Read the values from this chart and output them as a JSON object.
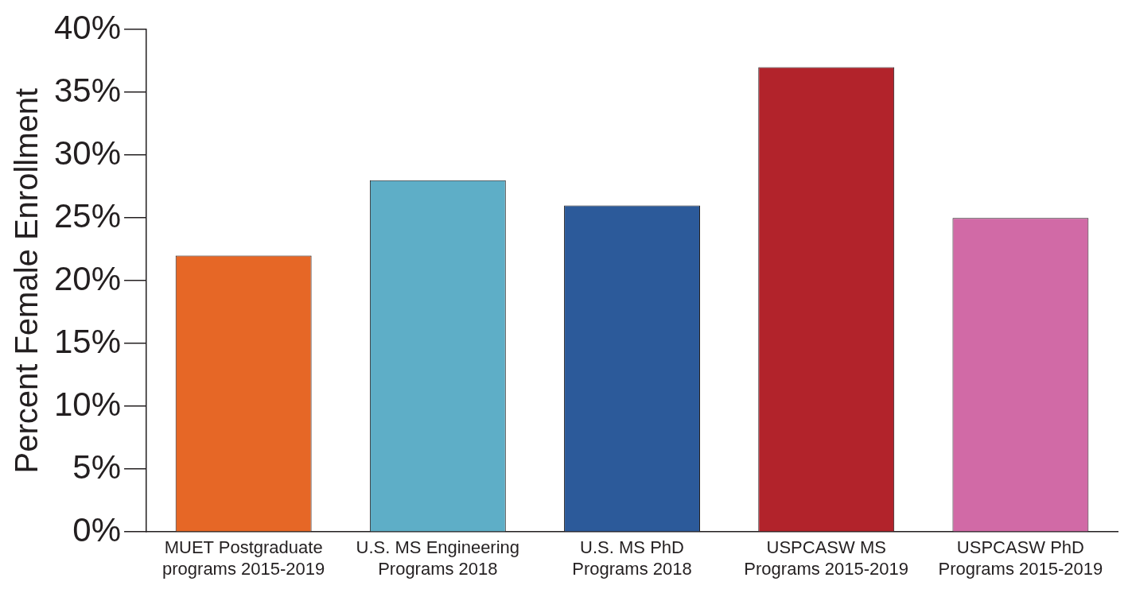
{
  "chart_data": {
    "type": "bar",
    "ylabel": "Percent Female Enrollment",
    "categories": [
      "MUET Postgraduate\nprograms 2015-2019",
      "U.S. MS Engineering\nPrograms 2018",
      "U.S. MS PhD\nPrograms 2018",
      "USPCASW MS\nPrograms 2015-2019",
      "USPCASW PhD\nPrograms 2015-2019"
    ],
    "values": [
      22,
      28,
      26,
      37,
      25
    ],
    "colors": [
      "#e66726",
      "#5eaec7",
      "#2c5a9a",
      "#b2232b",
      "#d16aa6"
    ],
    "ylim": [
      0,
      40
    ],
    "yticks": [
      {
        "value": 0,
        "label": "0%"
      },
      {
        "value": 5,
        "label": "5%"
      },
      {
        "value": 10,
        "label": "10%"
      },
      {
        "value": 15,
        "label": "15%"
      },
      {
        "value": 20,
        "label": "20%"
      },
      {
        "value": 25,
        "label": "25%"
      },
      {
        "value": 30,
        "label": "30%"
      },
      {
        "value": 35,
        "label": "35%"
      },
      {
        "value": 40,
        "label": "40%"
      }
    ],
    "grid": false,
    "legend": false
  }
}
